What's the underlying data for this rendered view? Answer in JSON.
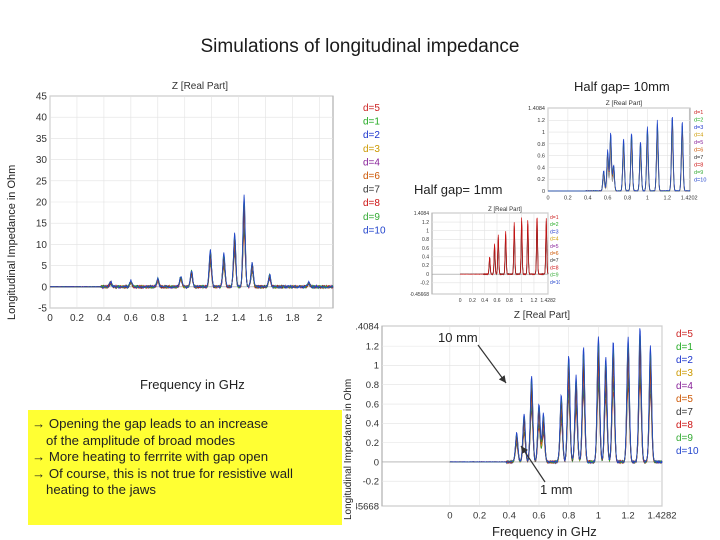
{
  "page_title": "Simulations of longitudinal impedance",
  "colors": {
    "legend": [
      "#cc2222",
      "#22aa22",
      "#1a33cc",
      "#cc9900",
      "#882299",
      "#cc5500",
      "#333333",
      "#cc1111",
      "#33aa33",
      "#2244cc"
    ],
    "note_background": "#ffff33",
    "gap10_curve": "#1133cc",
    "gap1_curve": "#22aa22",
    "reference_curves": "#999999"
  },
  "labels": {
    "main_ylabel": "Longitudinal Impedance in Ohm",
    "main_xlabel": "Frequency in GHz",
    "gap10": "Half gap= 10mm",
    "gap1": "Half gap= 1mm",
    "bottom_ylabel": "Longitudinal Impedance in Ohm",
    "bottom_xlabel": "Frequency in GHz",
    "ann_10mm": "10 mm",
    "ann_1mm": "1 mm"
  },
  "notes": [
    "→ Opening the gap leads to an increase",
    "of the amplitude of broad modes",
    "→ More heating to ferrrite with gap open",
    "→ Of course, this is not true for resistive wall",
    "heating to the jaws"
  ],
  "chart_data": [
    {
      "id": "main",
      "type": "line",
      "title": "Z [Real Part]",
      "xlabel": "Frequency in GHz",
      "ylabel": "Longitudinal Impedance in Ohm",
      "xlim": [
        0,
        2.1
      ],
      "ylim": [
        -5,
        45
      ],
      "x_ticks": [
        "0",
        "0.2",
        "0.4",
        "0.6",
        "0.8",
        "1",
        "1.2",
        "1.4",
        "1.6",
        "1.8",
        "2"
      ],
      "y_ticks": [
        "-5",
        "0",
        "5",
        "10",
        "15",
        "20",
        "25",
        "30",
        "35",
        "40",
        "45"
      ],
      "legend_position": "right",
      "legend": [
        "d=5",
        "d=1",
        "d=2",
        "d=3",
        "d=4",
        "d=6",
        "d=7",
        "d=8",
        "d=9",
        "d=10"
      ],
      "peaks": [
        [
          0.45,
          1.2
        ],
        [
          0.6,
          1.5
        ],
        [
          0.8,
          2
        ],
        [
          0.97,
          2.5
        ],
        [
          1.05,
          4
        ],
        [
          1.19,
          9
        ],
        [
          1.29,
          8
        ],
        [
          1.37,
          13
        ],
        [
          1.44,
          22
        ],
        [
          1.5,
          6
        ],
        [
          1.63,
          3
        ],
        [
          1.92,
          1
        ]
      ]
    },
    {
      "id": "gap10",
      "type": "line",
      "title": "Z [Real Part]",
      "xlim": [
        0,
        1.4282
      ],
      "ylim": [
        0,
        1.4084
      ],
      "x_ticks": [
        "0",
        "0.2",
        "0.4",
        "0.6",
        "0.8",
        "1",
        "1.2",
        "1.4202"
      ],
      "y_ticks": [
        "1.4084",
        "1.2",
        "1",
        "0.8",
        "0.6",
        "0.4",
        "0.2",
        "0"
      ],
      "legend": [
        "d=1",
        "d=2",
        "d=3",
        "d=4",
        "d=5",
        "d=6",
        "d=7",
        "d=8",
        "d=9",
        "d=10"
      ],
      "peaks": [
        [
          0.56,
          0.35
        ],
        [
          0.6,
          0.7
        ],
        [
          0.63,
          1.0
        ],
        [
          0.66,
          0.45
        ],
        [
          0.76,
          0.9
        ],
        [
          0.84,
          1.0
        ],
        [
          0.93,
          0.85
        ],
        [
          1.0,
          1.1
        ],
        [
          1.1,
          1.2
        ],
        [
          1.25,
          1.3
        ],
        [
          1.35,
          1.2
        ]
      ]
    },
    {
      "id": "gap1",
      "type": "line",
      "title": "Z [Real Part]",
      "xlim": [
        -0.45668,
        1.4282
      ],
      "ylim": [
        -0.45668,
        1.4084
      ],
      "x_ticks": [
        "0",
        "0.2",
        "0.4",
        "0.6",
        "0.8",
        "1",
        "1.2",
        "1.4282"
      ],
      "y_ticks": [
        "1.4084",
        "1.2",
        "1",
        "0.8",
        "0.6",
        "0.4",
        "0.2",
        "0",
        "-0.2",
        "-0.45668"
      ],
      "legend": [
        "d=1",
        "d=2",
        "d=3",
        "d=4",
        "d=5",
        "d=6",
        "d=7",
        "d=8",
        "d=9",
        "d=10"
      ],
      "peaks": [
        [
          0.48,
          0.4
        ],
        [
          0.56,
          0.7
        ],
        [
          0.62,
          0.9
        ],
        [
          0.74,
          1.0
        ],
        [
          0.88,
          1.2
        ],
        [
          1.0,
          1.3
        ],
        [
          1.1,
          1.25
        ],
        [
          1.25,
          1.35
        ],
        [
          1.4,
          1.3
        ]
      ]
    },
    {
      "id": "bottom",
      "type": "line",
      "title": "Z [Real Part]",
      "xlabel": "Frequency in GHz",
      "ylabel": "Longitudinal Impedance in Ohm",
      "xlim": [
        -0.45668,
        1.4282
      ],
      "ylim": [
        -0.45668,
        1.4084
      ],
      "x_ticks": [
        "0",
        "0.2",
        "0.4",
        "0.6",
        "0.8",
        "1",
        "1.2",
        "1.4282"
      ],
      "y_ticks": [
        "1.4084",
        "1.2",
        "1",
        "0.8",
        "0.6",
        "0.4",
        "0.2",
        "0",
        "-0.2",
        "-0.45668"
      ],
      "legend_position": "right",
      "legend": [
        "d=5",
        "d=1",
        "d=2",
        "d=3",
        "d=4",
        "d=5",
        "d=7",
        "d=8",
        "d=9",
        "d=10"
      ],
      "peaks": [
        [
          0.45,
          0.3
        ],
        [
          0.5,
          0.5
        ],
        [
          0.55,
          0.9
        ],
        [
          0.6,
          0.6
        ],
        [
          0.63,
          0.5
        ],
        [
          0.75,
          0.7
        ],
        [
          0.8,
          1.1
        ],
        [
          0.85,
          0.9
        ],
        [
          0.9,
          1.2
        ],
        [
          1.0,
          1.3
        ],
        [
          1.05,
          1.1
        ],
        [
          1.1,
          1.25
        ],
        [
          1.2,
          1.3
        ],
        [
          1.28,
          1.4
        ],
        [
          1.35,
          1.2
        ]
      ]
    }
  ]
}
